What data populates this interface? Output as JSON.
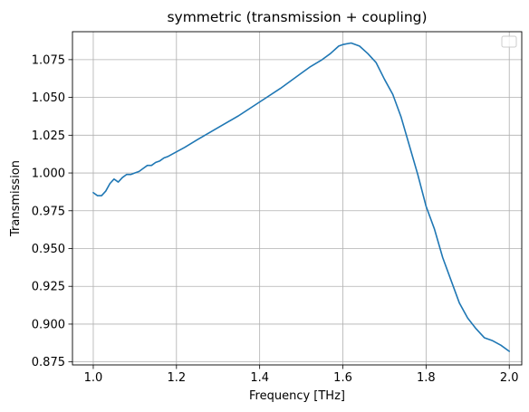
{
  "chart_data": {
    "type": "line",
    "title": "symmetric (transmission + coupling)",
    "xlabel": "Frequency [THz]",
    "ylabel": "Transmission",
    "xlim": [
      0.95,
      2.03
    ],
    "ylim": [
      0.873,
      1.0935
    ],
    "xticks": [
      1.0,
      1.2,
      1.4,
      1.6,
      1.8,
      2.0
    ],
    "xtick_labels": [
      "1.0",
      "1.2",
      "1.4",
      "1.6",
      "1.8",
      "2.0"
    ],
    "yticks": [
      0.875,
      0.9,
      0.925,
      0.95,
      0.975,
      1.0,
      1.025,
      1.05,
      1.075
    ],
    "ytick_labels": [
      "0.875",
      "0.900",
      "0.925",
      "0.950",
      "0.975",
      "1.000",
      "1.025",
      "1.050",
      "1.075"
    ],
    "grid": true,
    "legend": {
      "placement": "top-right",
      "entries": []
    },
    "colors": {
      "series": "#1f77b4",
      "grid": "#b0b0b0"
    },
    "series": [
      {
        "x": [
          1.0,
          1.01,
          1.02,
          1.03,
          1.04,
          1.05,
          1.06,
          1.07,
          1.08,
          1.09,
          1.1,
          1.11,
          1.12,
          1.13,
          1.14,
          1.15,
          1.16,
          1.17,
          1.18,
          1.2,
          1.22,
          1.25,
          1.3,
          1.35,
          1.4,
          1.45,
          1.5,
          1.52,
          1.55,
          1.57,
          1.59,
          1.6,
          1.62,
          1.64,
          1.66,
          1.68,
          1.7,
          1.72,
          1.74,
          1.76,
          1.78,
          1.8,
          1.82,
          1.84,
          1.86,
          1.88,
          1.9,
          1.92,
          1.94,
          1.96,
          1.98,
          2.0
        ],
        "y": [
          0.987,
          0.985,
          0.985,
          0.988,
          0.993,
          0.996,
          0.994,
          0.997,
          0.999,
          0.999,
          1.0,
          1.001,
          1.003,
          1.005,
          1.005,
          1.007,
          1.008,
          1.01,
          1.011,
          1.014,
          1.017,
          1.022,
          1.03,
          1.038,
          1.047,
          1.056,
          1.066,
          1.07,
          1.075,
          1.079,
          1.084,
          1.085,
          1.086,
          1.084,
          1.079,
          1.073,
          1.062,
          1.052,
          1.037,
          1.018,
          0.999,
          0.978,
          0.963,
          0.944,
          0.929,
          0.914,
          0.904,
          0.897,
          0.891,
          0.889,
          0.886,
          0.882
        ]
      }
    ]
  }
}
